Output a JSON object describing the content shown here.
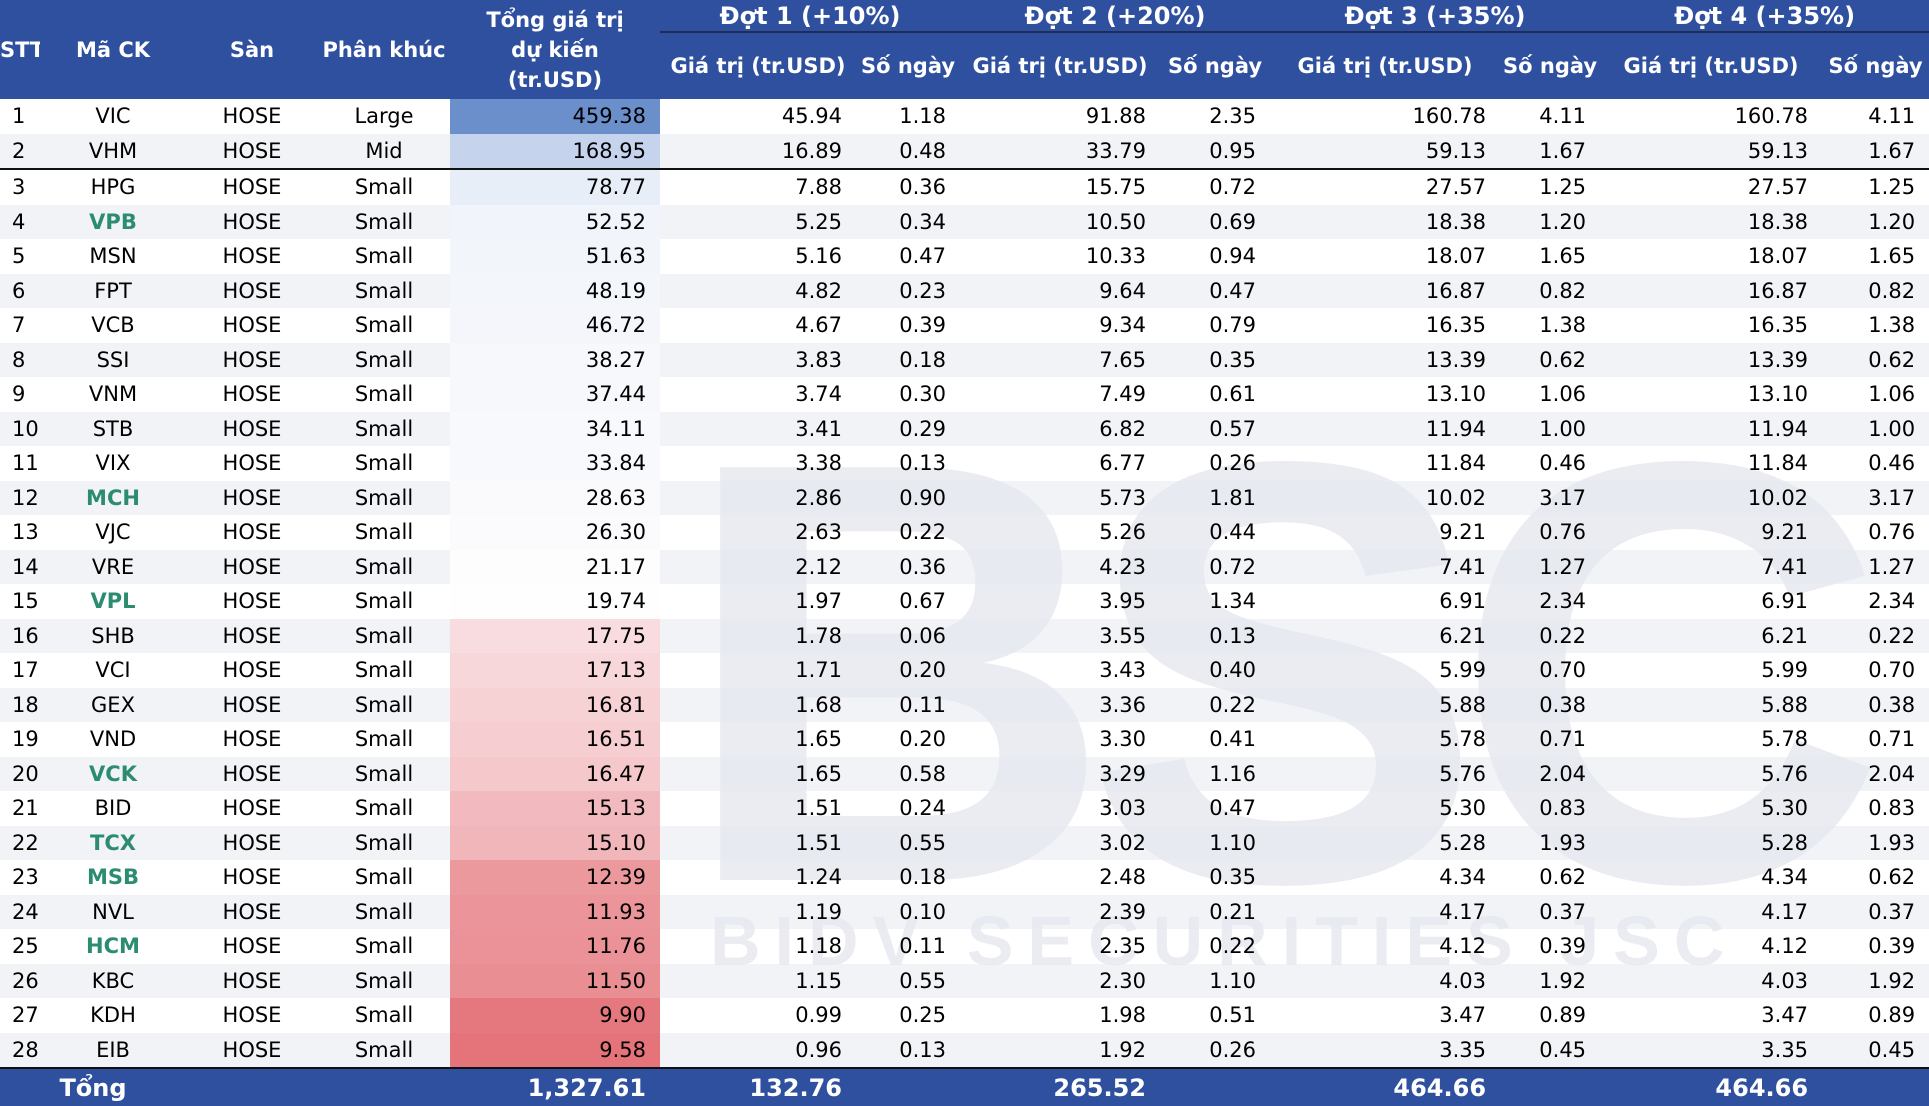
{
  "header": {
    "stt": "STT",
    "ticker": "Mã CK",
    "exchange": "Sàn",
    "segment": "Phân khúc",
    "total_expected": "Tổng giá trị dự kiến (tr.USD)",
    "rounds": [
      {
        "title": "Đợt 1 (+10%)",
        "value_label": "Giá trị (tr.USD)",
        "days_label": "Số ngày"
      },
      {
        "title": "Đợt 2 (+20%)",
        "value_label": "Giá trị (tr.USD)",
        "days_label": "Số ngày"
      },
      {
        "title": "Đợt 3 (+35%)",
        "value_label": "Giá trị (tr.USD)",
        "days_label": "Số ngày"
      },
      {
        "title": "Đợt 4 (+35%)",
        "value_label": "Giá trị (tr.USD)",
        "days_label": "Số ngày"
      }
    ]
  },
  "rows": [
    {
      "stt": "1",
      "ticker": "VIC",
      "exchange": "HOSE",
      "segment": "Large",
      "total": "459.38",
      "v1": "45.94",
      "d1": "1.18",
      "v2": "91.88",
      "d2": "2.35",
      "v3": "160.78",
      "d3": "4.11",
      "v4": "160.78",
      "d4": "4.11",
      "highlight": false,
      "bg": "#6B8FCB"
    },
    {
      "stt": "2",
      "ticker": "VHM",
      "exchange": "HOSE",
      "segment": "Mid",
      "total": "168.95",
      "v1": "16.89",
      "d1": "0.48",
      "v2": "33.79",
      "d2": "0.95",
      "v3": "59.13",
      "d3": "1.67",
      "v4": "59.13",
      "d4": "1.67",
      "highlight": false,
      "bg": "#C6D3EC"
    },
    {
      "stt": "3",
      "ticker": "HPG",
      "exchange": "HOSE",
      "segment": "Small",
      "total": "78.77",
      "v1": "7.88",
      "d1": "0.36",
      "v2": "15.75",
      "d2": "0.72",
      "v3": "27.57",
      "d3": "1.25",
      "v4": "27.57",
      "d4": "1.25",
      "highlight": false,
      "bg": "#E8EEF8"
    },
    {
      "stt": "4",
      "ticker": "VPB",
      "exchange": "HOSE",
      "segment": "Small",
      "total": "52.52",
      "v1": "5.25",
      "d1": "0.34",
      "v2": "10.50",
      "d2": "0.69",
      "v3": "18.38",
      "d3": "1.20",
      "v4": "18.38",
      "d4": "1.20",
      "highlight": true,
      "bg": "#F1F4FA"
    },
    {
      "stt": "5",
      "ticker": "MSN",
      "exchange": "HOSE",
      "segment": "Small",
      "total": "51.63",
      "v1": "5.16",
      "d1": "0.47",
      "v2": "10.33",
      "d2": "0.94",
      "v3": "18.07",
      "d3": "1.65",
      "v4": "18.07",
      "d4": "1.65",
      "highlight": false,
      "bg": "#F2F5FA"
    },
    {
      "stt": "6",
      "ticker": "FPT",
      "exchange": "HOSE",
      "segment": "Small",
      "total": "48.19",
      "v1": "4.82",
      "d1": "0.23",
      "v2": "9.64",
      "d2": "0.47",
      "v3": "16.87",
      "d3": "0.82",
      "v4": "16.87",
      "d4": "0.82",
      "highlight": false,
      "bg": "#F3F6FB"
    },
    {
      "stt": "7",
      "ticker": "VCB",
      "exchange": "HOSE",
      "segment": "Small",
      "total": "46.72",
      "v1": "4.67",
      "d1": "0.39",
      "v2": "9.34",
      "d2": "0.79",
      "v3": "16.35",
      "d3": "1.38",
      "v4": "16.35",
      "d4": "1.38",
      "highlight": false,
      "bg": "#F4F6FB"
    },
    {
      "stt": "8",
      "ticker": "SSI",
      "exchange": "HOSE",
      "segment": "Small",
      "total": "38.27",
      "v1": "3.83",
      "d1": "0.18",
      "v2": "7.65",
      "d2": "0.35",
      "v3": "13.39",
      "d3": "0.62",
      "v4": "13.39",
      "d4": "0.62",
      "highlight": false,
      "bg": "#F6F8FC"
    },
    {
      "stt": "9",
      "ticker": "VNM",
      "exchange": "HOSE",
      "segment": "Small",
      "total": "37.44",
      "v1": "3.74",
      "d1": "0.30",
      "v2": "7.49",
      "d2": "0.61",
      "v3": "13.10",
      "d3": "1.06",
      "v4": "13.10",
      "d4": "1.06",
      "highlight": false,
      "bg": "#F7F8FC"
    },
    {
      "stt": "10",
      "ticker": "STB",
      "exchange": "HOSE",
      "segment": "Small",
      "total": "34.11",
      "v1": "3.41",
      "d1": "0.29",
      "v2": "6.82",
      "d2": "0.57",
      "v3": "11.94",
      "d3": "1.00",
      "v4": "11.94",
      "d4": "1.00",
      "highlight": false,
      "bg": "#F8F9FD"
    },
    {
      "stt": "11",
      "ticker": "VIX",
      "exchange": "HOSE",
      "segment": "Small",
      "total": "33.84",
      "v1": "3.38",
      "d1": "0.13",
      "v2": "6.77",
      "d2": "0.26",
      "v3": "11.84",
      "d3": "0.46",
      "v4": "11.84",
      "d4": "0.46",
      "highlight": false,
      "bg": "#F8F9FD"
    },
    {
      "stt": "12",
      "ticker": "MCH",
      "exchange": "HOSE",
      "segment": "Small",
      "total": "28.63",
      "v1": "2.86",
      "d1": "0.90",
      "v2": "5.73",
      "d2": "1.81",
      "v3": "10.02",
      "d3": "3.17",
      "v4": "10.02",
      "d4": "3.17",
      "highlight": true,
      "bg": "#FAFAFD"
    },
    {
      "stt": "13",
      "ticker": "VJC",
      "exchange": "HOSE",
      "segment": "Small",
      "total": "26.30",
      "v1": "2.63",
      "d1": "0.22",
      "v2": "5.26",
      "d2": "0.44",
      "v3": "9.21",
      "d3": "0.76",
      "v4": "9.21",
      "d4": "0.76",
      "highlight": false,
      "bg": "#FBFBFE"
    },
    {
      "stt": "14",
      "ticker": "VRE",
      "exchange": "HOSE",
      "segment": "Small",
      "total": "21.17",
      "v1": "2.12",
      "d1": "0.36",
      "v2": "4.23",
      "d2": "0.72",
      "v3": "7.41",
      "d3": "1.27",
      "v4": "7.41",
      "d4": "1.27",
      "highlight": false,
      "bg": "#FDFDFE"
    },
    {
      "stt": "15",
      "ticker": "VPL",
      "exchange": "HOSE",
      "segment": "Small",
      "total": "19.74",
      "v1": "1.97",
      "d1": "0.67",
      "v2": "3.95",
      "d2": "1.34",
      "v3": "6.91",
      "d3": "2.34",
      "v4": "6.91",
      "d4": "2.34",
      "highlight": true,
      "bg": "#FEFEFF"
    },
    {
      "stt": "16",
      "ticker": "SHB",
      "exchange": "HOSE",
      "segment": "Small",
      "total": "17.75",
      "v1": "1.78",
      "d1": "0.06",
      "v2": "3.55",
      "d2": "0.13",
      "v3": "6.21",
      "d3": "0.22",
      "v4": "6.21",
      "d4": "0.22",
      "highlight": false,
      "bg": "#F9DCDF"
    },
    {
      "stt": "17",
      "ticker": "VCI",
      "exchange": "HOSE",
      "segment": "Small",
      "total": "17.13",
      "v1": "1.71",
      "d1": "0.20",
      "v2": "3.43",
      "d2": "0.40",
      "v3": "5.99",
      "d3": "0.70",
      "v4": "5.99",
      "d4": "0.70",
      "highlight": false,
      "bg": "#F8D7DA"
    },
    {
      "stt": "18",
      "ticker": "GEX",
      "exchange": "HOSE",
      "segment": "Small",
      "total": "16.81",
      "v1": "1.68",
      "d1": "0.11",
      "v2": "3.36",
      "d2": "0.22",
      "v3": "5.88",
      "d3": "0.38",
      "v4": "5.88",
      "d4": "0.38",
      "highlight": false,
      "bg": "#F7D2D5"
    },
    {
      "stt": "19",
      "ticker": "VND",
      "exchange": "HOSE",
      "segment": "Small",
      "total": "16.51",
      "v1": "1.65",
      "d1": "0.20",
      "v2": "3.30",
      "d2": "0.41",
      "v3": "5.78",
      "d3": "0.71",
      "v4": "5.78",
      "d4": "0.71",
      "highlight": false,
      "bg": "#F6CDD0"
    },
    {
      "stt": "20",
      "ticker": "VCK",
      "exchange": "HOSE",
      "segment": "Small",
      "total": "16.47",
      "v1": "1.65",
      "d1": "0.58",
      "v2": "3.29",
      "d2": "1.16",
      "v3": "5.76",
      "d3": "2.04",
      "v4": "5.76",
      "d4": "2.04",
      "highlight": true,
      "bg": "#F5C9CC"
    },
    {
      "stt": "21",
      "ticker": "BID",
      "exchange": "HOSE",
      "segment": "Small",
      "total": "15.13",
      "v1": "1.51",
      "d1": "0.24",
      "v2": "3.03",
      "d2": "0.47",
      "v3": "5.30",
      "d3": "0.83",
      "v4": "5.30",
      "d4": "0.83",
      "highlight": false,
      "bg": "#F2BABE"
    },
    {
      "stt": "22",
      "ticker": "TCX",
      "exchange": "HOSE",
      "segment": "Small",
      "total": "15.10",
      "v1": "1.51",
      "d1": "0.55",
      "v2": "3.02",
      "d2": "1.10",
      "v3": "5.28",
      "d3": "1.93",
      "v4": "5.28",
      "d4": "1.93",
      "highlight": true,
      "bg": "#F1B6BA"
    },
    {
      "stt": "23",
      "ticker": "MSB",
      "exchange": "HOSE",
      "segment": "Small",
      "total": "12.39",
      "v1": "1.24",
      "d1": "0.18",
      "v2": "2.48",
      "d2": "0.35",
      "v3": "4.34",
      "d3": "0.62",
      "v4": "4.34",
      "d4": "0.62",
      "highlight": true,
      "bg": "#EC999E"
    },
    {
      "stt": "24",
      "ticker": "NVL",
      "exchange": "HOSE",
      "segment": "Small",
      "total": "11.93",
      "v1": "1.19",
      "d1": "0.10",
      "v2": "2.39",
      "d2": "0.21",
      "v3": "4.17",
      "d3": "0.37",
      "v4": "4.17",
      "d4": "0.37",
      "highlight": false,
      "bg": "#EB9499"
    },
    {
      "stt": "25",
      "ticker": "HCM",
      "exchange": "HOSE",
      "segment": "Small",
      "total": "11.76",
      "v1": "1.18",
      "d1": "0.11",
      "v2": "2.35",
      "d2": "0.22",
      "v3": "4.12",
      "d3": "0.39",
      "v4": "4.12",
      "d4": "0.39",
      "highlight": true,
      "bg": "#EA9297"
    },
    {
      "stt": "26",
      "ticker": "KBC",
      "exchange": "HOSE",
      "segment": "Small",
      "total": "11.50",
      "v1": "1.15",
      "d1": "0.55",
      "v2": "2.30",
      "d2": "1.10",
      "v3": "4.03",
      "d3": "1.92",
      "v4": "4.03",
      "d4": "1.92",
      "highlight": false,
      "bg": "#E98E93"
    },
    {
      "stt": "27",
      "ticker": "KDH",
      "exchange": "HOSE",
      "segment": "Small",
      "total": "9.90",
      "v1": "0.99",
      "d1": "0.25",
      "v2": "1.98",
      "d2": "0.51",
      "v3": "3.47",
      "d3": "0.89",
      "v4": "3.47",
      "d4": "0.89",
      "highlight": false,
      "bg": "#E5787E"
    },
    {
      "stt": "28",
      "ticker": "EIB",
      "exchange": "HOSE",
      "segment": "Small",
      "total": "9.58",
      "v1": "0.96",
      "d1": "0.13",
      "v2": "1.92",
      "d2": "0.26",
      "v3": "3.35",
      "d3": "0.45",
      "v4": "3.35",
      "d4": "0.45",
      "highlight": false,
      "bg": "#E4737A"
    }
  ],
  "footer": {
    "label": "Tổng",
    "total": "1,327.61",
    "v1": "132.76",
    "v2": "265.52",
    "v3": "464.66",
    "v4": "464.66"
  },
  "watermark": {
    "logo_text": "BSC",
    "tagline": "BIDV SECURITIES JSC"
  },
  "colors": {
    "header_bg": "#2E509F",
    "highlight_ticker": "#2B8C72",
    "watermark": "#E6E8EE"
  }
}
